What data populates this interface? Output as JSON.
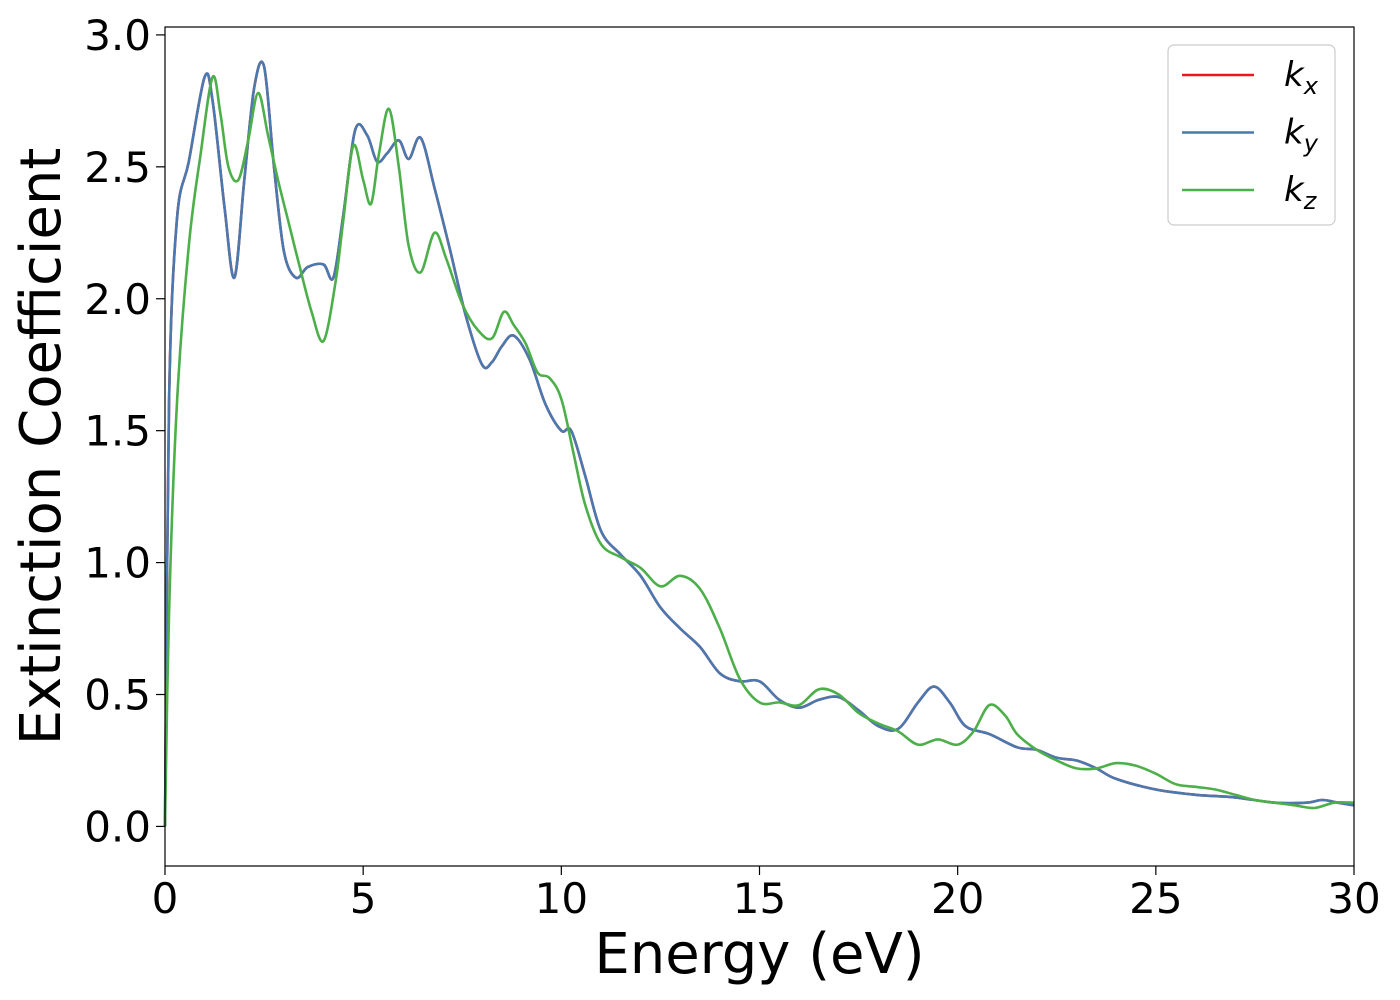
{
  "chart_data": {
    "type": "line",
    "title": "",
    "xlabel": "Energy (eV)",
    "ylabel": "Extinction Coefficient",
    "xlim": [
      0,
      30
    ],
    "ylim": [
      -0.15,
      3.03
    ],
    "xticks": [
      0,
      5,
      10,
      15,
      20,
      25,
      30
    ],
    "xtick_labels": [
      "0",
      "5",
      "10",
      "15",
      "20",
      "25",
      "30"
    ],
    "yticks": [
      0.0,
      0.5,
      1.0,
      1.5,
      2.0,
      2.5,
      3.0
    ],
    "ytick_labels": [
      "0.0",
      "0.5",
      "1.0",
      "1.5",
      "2.0",
      "2.5",
      "3.0"
    ],
    "grid": false,
    "legend_position": "top-right",
    "series": [
      {
        "name": "k_x",
        "legend_main": "k",
        "legend_sub": "x",
        "color": "#e41a1c",
        "x": [
          0,
          0.1,
          0.3,
          0.6,
          1.0,
          1.2,
          1.5,
          1.75,
          2.0,
          2.25,
          2.5,
          2.75,
          3.0,
          3.3,
          3.6,
          4.0,
          4.25,
          4.5,
          4.8,
          5.1,
          5.35,
          5.6,
          5.9,
          6.15,
          6.45,
          6.8,
          7.2,
          7.6,
          8.0,
          8.25,
          8.5,
          8.8,
          9.2,
          9.6,
          10.0,
          10.25,
          10.6,
          11.0,
          11.5,
          12.0,
          12.5,
          13.0,
          13.5,
          14.0,
          14.5,
          15.0,
          15.5,
          16.0,
          16.5,
          17.0,
          17.5,
          18.0,
          18.5,
          19.0,
          19.4,
          19.8,
          20.2,
          20.8,
          21.5,
          22.0,
          22.5,
          23.0,
          23.5,
          24.0,
          25.0,
          26.0,
          27.0,
          28.0,
          28.8,
          29.2,
          29.6,
          30.0
        ],
        "y": [
          0.0,
          1.6,
          2.3,
          2.52,
          2.84,
          2.75,
          2.35,
          2.08,
          2.45,
          2.8,
          2.88,
          2.5,
          2.18,
          2.08,
          2.12,
          2.13,
          2.08,
          2.32,
          2.64,
          2.62,
          2.52,
          2.55,
          2.6,
          2.53,
          2.61,
          2.42,
          2.18,
          1.93,
          1.75,
          1.76,
          1.82,
          1.86,
          1.77,
          1.6,
          1.5,
          1.5,
          1.33,
          1.12,
          1.03,
          0.95,
          0.83,
          0.75,
          0.68,
          0.58,
          0.55,
          0.55,
          0.48,
          0.45,
          0.48,
          0.49,
          0.44,
          0.38,
          0.37,
          0.47,
          0.53,
          0.47,
          0.38,
          0.35,
          0.3,
          0.29,
          0.26,
          0.25,
          0.22,
          0.18,
          0.14,
          0.12,
          0.11,
          0.09,
          0.09,
          0.1,
          0.09,
          0.08
        ]
      },
      {
        "name": "k_y",
        "legend_main": "k",
        "legend_sub": "y",
        "color": "#4a79b0",
        "x": [
          0,
          0.1,
          0.3,
          0.6,
          1.0,
          1.2,
          1.5,
          1.75,
          2.0,
          2.25,
          2.5,
          2.75,
          3.0,
          3.3,
          3.6,
          4.0,
          4.25,
          4.5,
          4.8,
          5.1,
          5.35,
          5.6,
          5.9,
          6.15,
          6.45,
          6.8,
          7.2,
          7.6,
          8.0,
          8.25,
          8.5,
          8.8,
          9.2,
          9.6,
          10.0,
          10.25,
          10.6,
          11.0,
          11.5,
          12.0,
          12.5,
          13.0,
          13.5,
          14.0,
          14.5,
          15.0,
          15.5,
          16.0,
          16.5,
          17.0,
          17.5,
          18.0,
          18.5,
          19.0,
          19.4,
          19.8,
          20.2,
          20.8,
          21.5,
          22.0,
          22.5,
          23.0,
          23.5,
          24.0,
          25.0,
          26.0,
          27.0,
          28.0,
          28.8,
          29.2,
          29.6,
          30.0
        ],
        "y": [
          0.0,
          1.6,
          2.3,
          2.52,
          2.84,
          2.75,
          2.35,
          2.08,
          2.45,
          2.8,
          2.88,
          2.5,
          2.18,
          2.08,
          2.12,
          2.13,
          2.08,
          2.32,
          2.64,
          2.62,
          2.52,
          2.55,
          2.6,
          2.53,
          2.61,
          2.42,
          2.18,
          1.93,
          1.75,
          1.76,
          1.82,
          1.86,
          1.77,
          1.6,
          1.5,
          1.5,
          1.33,
          1.12,
          1.03,
          0.95,
          0.83,
          0.75,
          0.68,
          0.58,
          0.55,
          0.55,
          0.48,
          0.45,
          0.48,
          0.49,
          0.44,
          0.38,
          0.37,
          0.47,
          0.53,
          0.47,
          0.38,
          0.35,
          0.3,
          0.29,
          0.26,
          0.25,
          0.22,
          0.18,
          0.14,
          0.12,
          0.11,
          0.09,
          0.09,
          0.1,
          0.09,
          0.08
        ]
      },
      {
        "name": "k_z",
        "legend_main": "k",
        "legend_sub": "z",
        "color": "#4daf4a",
        "x": [
          0,
          0.1,
          0.3,
          0.6,
          0.9,
          1.2,
          1.4,
          1.6,
          1.85,
          2.1,
          2.35,
          2.6,
          2.85,
          3.1,
          3.4,
          3.7,
          4.0,
          4.3,
          4.5,
          4.75,
          5.0,
          5.2,
          5.4,
          5.65,
          5.9,
          6.15,
          6.45,
          6.8,
          7.1,
          7.5,
          7.9,
          8.25,
          8.55,
          8.8,
          9.1,
          9.4,
          9.7,
          10.0,
          10.3,
          10.6,
          11.0,
          11.5,
          12.0,
          12.5,
          13.0,
          13.5,
          14.0,
          14.5,
          15.0,
          15.5,
          16.0,
          16.5,
          17.0,
          17.5,
          18.0,
          18.5,
          19.0,
          19.5,
          20.0,
          20.4,
          20.8,
          21.2,
          21.5,
          22.0,
          22.5,
          23.0,
          23.5,
          24.0,
          24.5,
          25.0,
          25.5,
          26.0,
          26.5,
          27.0,
          27.5,
          28.0,
          28.5,
          29.0,
          29.5,
          30.0
        ],
        "y": [
          0.0,
          0.8,
          1.6,
          2.2,
          2.55,
          2.84,
          2.7,
          2.5,
          2.45,
          2.6,
          2.78,
          2.62,
          2.45,
          2.3,
          2.12,
          1.95,
          1.84,
          2.06,
          2.3,
          2.58,
          2.45,
          2.36,
          2.55,
          2.72,
          2.5,
          2.2,
          2.1,
          2.25,
          2.15,
          1.98,
          1.88,
          1.85,
          1.95,
          1.9,
          1.83,
          1.72,
          1.7,
          1.62,
          1.42,
          1.22,
          1.07,
          1.02,
          0.98,
          0.91,
          0.95,
          0.9,
          0.75,
          0.56,
          0.47,
          0.47,
          0.46,
          0.52,
          0.5,
          0.43,
          0.39,
          0.36,
          0.31,
          0.33,
          0.31,
          0.36,
          0.46,
          0.42,
          0.35,
          0.29,
          0.25,
          0.22,
          0.22,
          0.24,
          0.23,
          0.2,
          0.16,
          0.15,
          0.14,
          0.12,
          0.1,
          0.09,
          0.08,
          0.07,
          0.09,
          0.09
        ]
      }
    ]
  }
}
